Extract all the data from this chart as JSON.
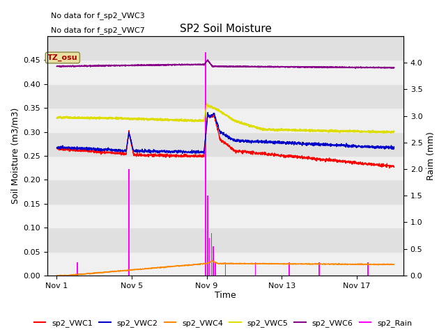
{
  "title": "SP2 Soil Moisture",
  "xlabel": "Time",
  "ylabel_left": "Soil Moisture (m3/m3)",
  "ylabel_right": "Raim (mm)",
  "no_data_text": [
    "No data for f_sp2_VWC3",
    "No data for f_sp2_VWC7"
  ],
  "tz_label": "TZ_osu",
  "ylim_left": [
    0.0,
    0.5
  ],
  "ylim_right": [
    0.0,
    4.5
  ],
  "x_ticks": [
    1,
    5,
    9,
    13,
    17
  ],
  "x_tick_labels": [
    "Nov 1",
    "Nov 5",
    "Nov 9",
    "Nov 13",
    "Nov 17"
  ],
  "y_ticks_left": [
    0.0,
    0.05,
    0.1,
    0.15,
    0.2,
    0.25,
    0.3,
    0.35,
    0.4,
    0.45
  ],
  "y_ticks_right": [
    0.0,
    0.5,
    1.0,
    1.5,
    2.0,
    2.5,
    3.0,
    3.5,
    4.0
  ],
  "fig_bg": "#ffffff",
  "plot_bg_light": "#f0f0f0",
  "plot_bg_dark": "#e0e0e0",
  "colors": {
    "vwc1": "#ff0000",
    "vwc2": "#0000cc",
    "vwc4": "#ff8800",
    "vwc5": "#dddd00",
    "vwc6": "#880088",
    "rain": "#ff00ff"
  },
  "legend_labels": [
    "sp2_VWC1",
    "sp2_VWC2",
    "sp2_VWC4",
    "sp2_VWC5",
    "sp2_VWC6",
    "sp2_Rain"
  ]
}
